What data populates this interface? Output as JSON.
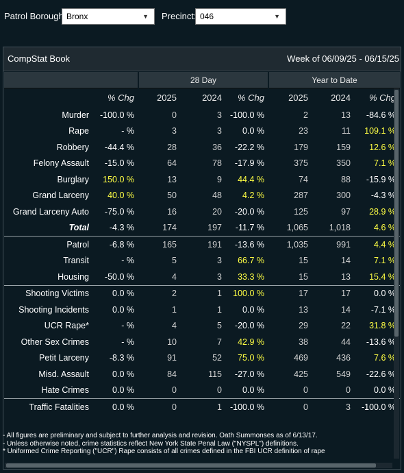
{
  "filters": {
    "borough_label": "Patrol Borough:",
    "borough_value": "Bronx",
    "precinct_label": "Precinct:",
    "precinct_value": "046"
  },
  "panel": {
    "title": "CompStat Book",
    "week": "Week of 06/09/25 - 06/15/25"
  },
  "table": {
    "group_28": "28 Day",
    "group_ytd": "Year to Date",
    "headers": [
      "",
      "% Chg",
      "2025",
      "2024",
      "% Chg",
      "2025",
      "2024",
      "% Chg"
    ],
    "rows": [
      {
        "label": "Murder",
        "wk": "-100.0 %",
        "d25": "0",
        "d24": "3",
        "dchg": "-100.0 %",
        "y25": "2",
        "y24": "13",
        "ychg": "-84.6 %",
        "hl": [
          false,
          false,
          false
        ]
      },
      {
        "label": "Rape",
        "wk": "- %",
        "d25": "3",
        "d24": "3",
        "dchg": "0.0 %",
        "y25": "23",
        "y24": "11",
        "ychg": "109.1 %",
        "hl": [
          false,
          false,
          true
        ]
      },
      {
        "label": "Robbery",
        "wk": "-44.4 %",
        "d25": "28",
        "d24": "36",
        "dchg": "-22.2 %",
        "y25": "179",
        "y24": "159",
        "ychg": "12.6 %",
        "hl": [
          false,
          false,
          true
        ]
      },
      {
        "label": "Felony Assault",
        "wk": "-15.0 %",
        "d25": "64",
        "d24": "78",
        "dchg": "-17.9 %",
        "y25": "375",
        "y24": "350",
        "ychg": "7.1 %",
        "hl": [
          false,
          false,
          true
        ]
      },
      {
        "label": "Burglary",
        "wk": "150.0 %",
        "d25": "13",
        "d24": "9",
        "dchg": "44.4 %",
        "y25": "74",
        "y24": "88",
        "ychg": "-15.9 %",
        "hl": [
          true,
          true,
          false
        ]
      },
      {
        "label": "Grand Larceny",
        "wk": "40.0 %",
        "d25": "50",
        "d24": "48",
        "dchg": "4.2 %",
        "y25": "287",
        "y24": "300",
        "ychg": "-4.3 %",
        "hl": [
          true,
          true,
          false
        ]
      },
      {
        "label": "Grand Larceny Auto",
        "wk": "-75.0 %",
        "d25": "16",
        "d24": "20",
        "dchg": "-20.0 %",
        "y25": "125",
        "y24": "97",
        "ychg": "28.9 %",
        "hl": [
          false,
          false,
          true
        ]
      },
      {
        "label": "Total",
        "wk": "-4.3 %",
        "d25": "174",
        "d24": "197",
        "dchg": "-11.7 %",
        "y25": "1,065",
        "y24": "1,018",
        "ychg": "4.6 %",
        "hl": [
          false,
          false,
          true
        ],
        "bold": true
      },
      {
        "label": "Patrol",
        "wk": "-6.8 %",
        "d25": "165",
        "d24": "191",
        "dchg": "-13.6 %",
        "y25": "1,035",
        "y24": "991",
        "ychg": "4.4 %",
        "hl": [
          false,
          false,
          true
        ],
        "topline": true
      },
      {
        "label": "Transit",
        "wk": "- %",
        "d25": "5",
        "d24": "3",
        "dchg": "66.7 %",
        "y25": "15",
        "y24": "14",
        "ychg": "7.1 %",
        "hl": [
          false,
          true,
          true
        ]
      },
      {
        "label": "Housing",
        "wk": "-50.0 %",
        "d25": "4",
        "d24": "3",
        "dchg": "33.3 %",
        "y25": "15",
        "y24": "13",
        "ychg": "15.4 %",
        "hl": [
          false,
          true,
          true
        ]
      },
      {
        "label": "Shooting Victims",
        "wk": "0.0 %",
        "d25": "2",
        "d24": "1",
        "dchg": "100.0 %",
        "y25": "17",
        "y24": "17",
        "ychg": "0.0 %",
        "hl": [
          false,
          true,
          false
        ],
        "topline": true
      },
      {
        "label": "Shooting Incidents",
        "wk": "0.0 %",
        "d25": "1",
        "d24": "1",
        "dchg": "0.0 %",
        "y25": "13",
        "y24": "14",
        "ychg": "-7.1 %",
        "hl": [
          false,
          false,
          false
        ]
      },
      {
        "label": "UCR Rape*",
        "wk": "- %",
        "d25": "4",
        "d24": "5",
        "dchg": "-20.0 %",
        "y25": "29",
        "y24": "22",
        "ychg": "31.8 %",
        "hl": [
          false,
          false,
          true
        ]
      },
      {
        "label": "Other Sex Crimes",
        "wk": "- %",
        "d25": "10",
        "d24": "7",
        "dchg": "42.9 %",
        "y25": "38",
        "y24": "44",
        "ychg": "-13.6 %",
        "hl": [
          false,
          true,
          false
        ]
      },
      {
        "label": "Petit Larceny",
        "wk": "-8.3 %",
        "d25": "91",
        "d24": "52",
        "dchg": "75.0 %",
        "y25": "469",
        "y24": "436",
        "ychg": "7.6 %",
        "hl": [
          false,
          true,
          true
        ]
      },
      {
        "label": "Misd. Assault",
        "wk": "0.0 %",
        "d25": "84",
        "d24": "115",
        "dchg": "-27.0 %",
        "y25": "425",
        "y24": "549",
        "ychg": "-22.6 %",
        "hl": [
          false,
          false,
          false
        ]
      },
      {
        "label": "Hate Crimes",
        "wk": "0.0 %",
        "d25": "0",
        "d24": "0",
        "dchg": "0.0 %",
        "y25": "0",
        "y24": "0",
        "ychg": "0.0 %",
        "hl": [
          false,
          false,
          false
        ]
      },
      {
        "label": "Traffic Fatalities",
        "wk": "0.0 %",
        "d25": "0",
        "d24": "1",
        "dchg": "-100.0 %",
        "y25": "0",
        "y24": "3",
        "ychg": "-100.0 %",
        "hl": [
          false,
          false,
          false
        ],
        "topline": true
      }
    ]
  },
  "notes": [
    "- All figures are preliminary and subject to further analysis and revision. Oath Summonses as of 6/13/17.",
    "- Unless otherwise noted, crime statistics reflect New York State Penal Law (\"NYSPL\") definitions.",
    "* Uniformed Crime Reporting (\"UCR\") Rape consists of all crimes defined in the FBI UCR definition of rape"
  ],
  "colors": {
    "background": "#0b1a22",
    "highlight": "#ffff44",
    "header_bar": "#1f2a31"
  },
  "icons": {
    "dropdown": "chevron-down-icon"
  }
}
